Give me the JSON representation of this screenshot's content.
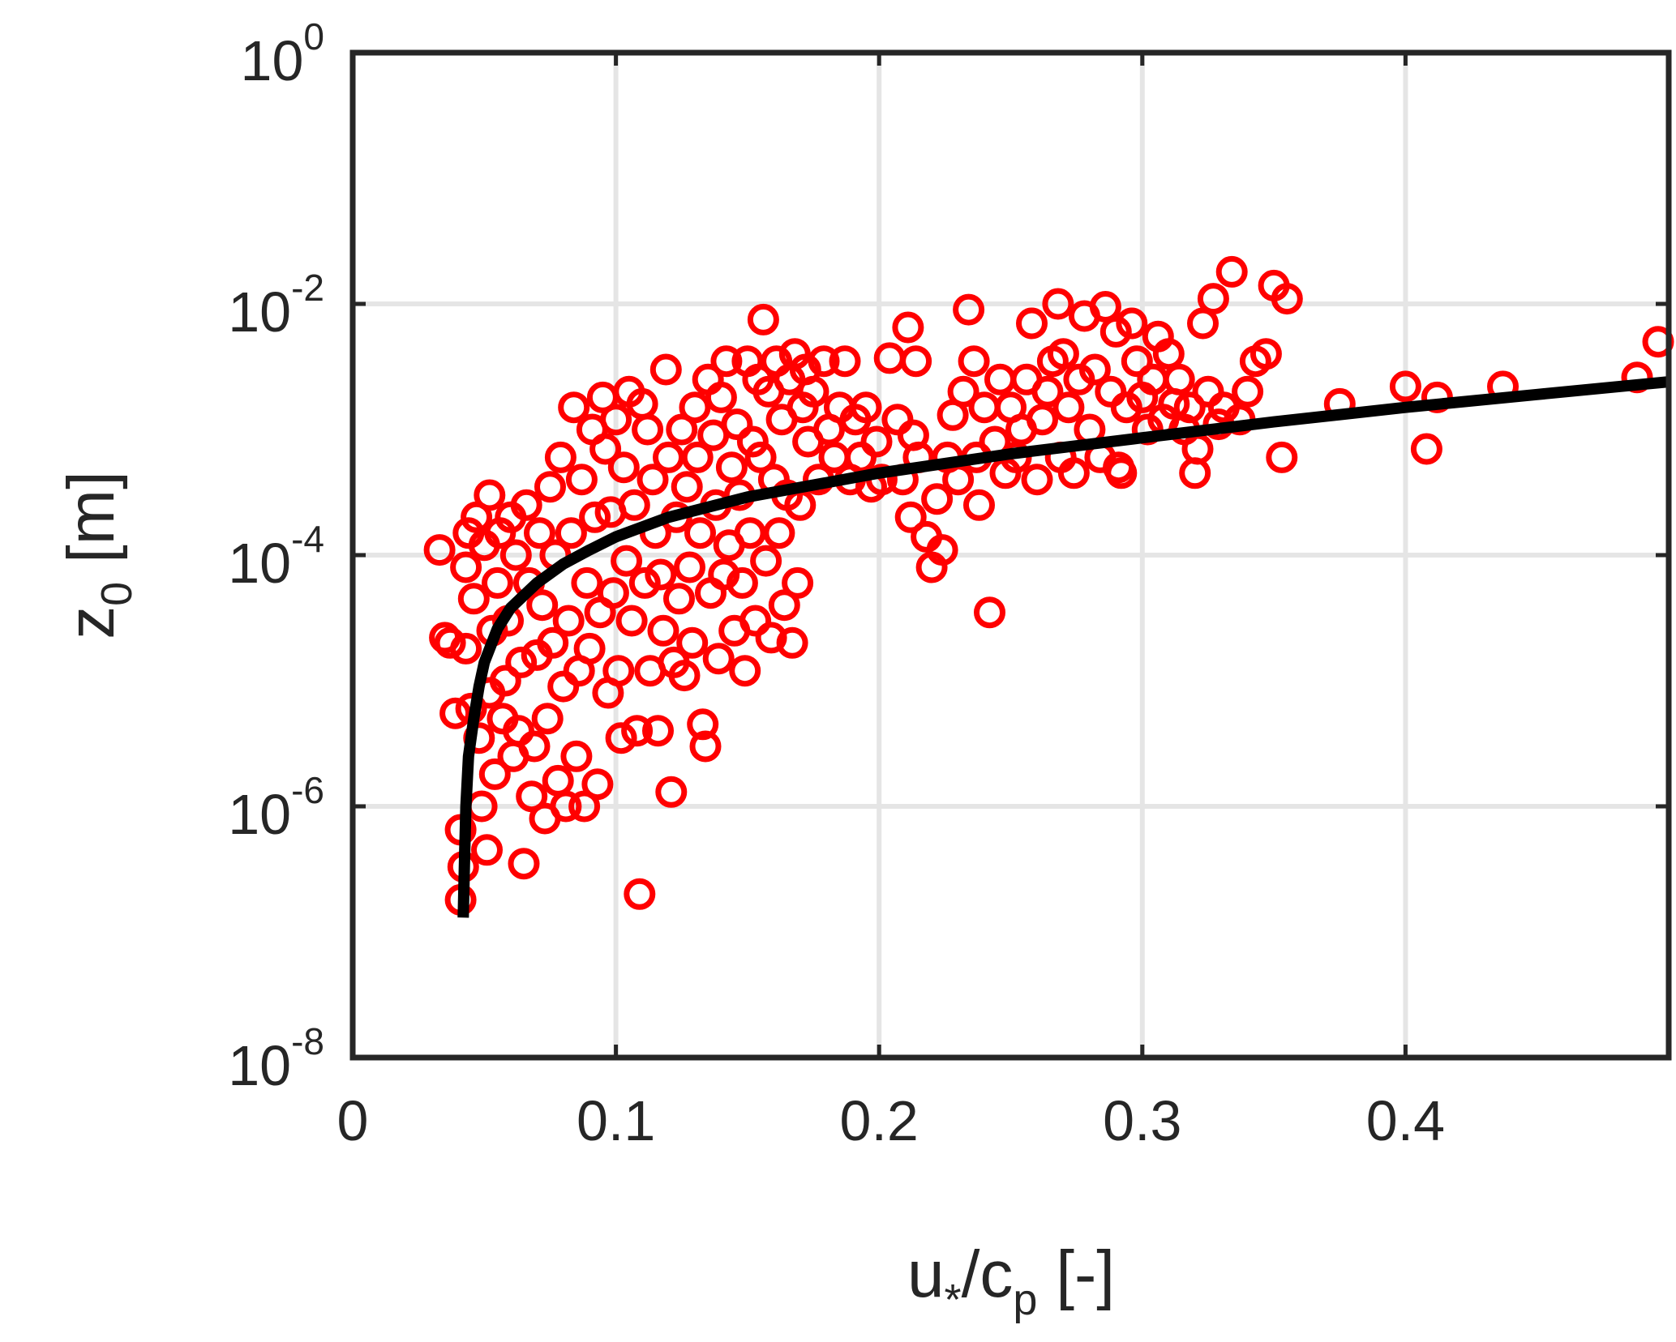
{
  "chart_data": {
    "type": "scatter",
    "title": "",
    "xlabel": {
      "base": "u",
      "sub1": "*",
      "mid": "/c",
      "sub2": "p",
      "unit": " [-]"
    },
    "ylabel": {
      "base": "z",
      "sub": "0",
      "unit": " [m]"
    },
    "xlim": [
      0,
      0.5
    ],
    "ylim": [
      1e-08,
      1
    ],
    "yscale": "log",
    "grid": true,
    "x_ticks": [
      {
        "v": 0,
        "label": "0"
      },
      {
        "v": 0.1,
        "label": "0.1"
      },
      {
        "v": 0.2,
        "label": "0.2"
      },
      {
        "v": 0.3,
        "label": "0.3"
      },
      {
        "v": 0.4,
        "label": "0.4"
      }
    ],
    "y_ticks": [
      {
        "exp": -8,
        "base": "10",
        "sup": "-8"
      },
      {
        "exp": -6,
        "base": "10",
        "sup": "-6"
      },
      {
        "exp": -4,
        "base": "10",
        "sup": "-4"
      },
      {
        "exp": -2,
        "base": "10",
        "sup": "-2"
      },
      {
        "exp": 0,
        "base": "10",
        "sup": "0"
      }
    ],
    "colors": {
      "points": "#ff0000",
      "fit": "#000000",
      "axes": "#262626",
      "grid": "#e5e5e5"
    },
    "series": [
      {
        "type": "scatter",
        "marker": "open-circle",
        "points": [
          [
            0.033,
            0.00011
          ],
          [
            0.035,
            2.2e-05
          ],
          [
            0.037,
            2e-05
          ],
          [
            0.039,
            5.5e-06
          ],
          [
            0.041,
            6.5e-07
          ],
          [
            0.041,
            1.8e-07
          ],
          [
            0.042,
            3.3e-07
          ],
          [
            0.043,
            8e-05
          ],
          [
            0.043,
            1.8e-05
          ],
          [
            0.044,
            0.00015
          ],
          [
            0.045,
            6e-06
          ],
          [
            0.046,
            4.5e-05
          ],
          [
            0.047,
            0.0002
          ],
          [
            0.048,
            3.5e-06
          ],
          [
            0.049,
            1e-06
          ],
          [
            0.05,
            0.00012
          ],
          [
            0.051,
            4.5e-07
          ],
          [
            0.052,
            8e-06
          ],
          [
            0.052,
            0.0003
          ],
          [
            0.053,
            2.5e-05
          ],
          [
            0.054,
            1.8e-06
          ],
          [
            0.055,
            6e-05
          ],
          [
            0.056,
            0.00015
          ],
          [
            0.057,
            5e-06
          ],
          [
            0.058,
            1e-05
          ],
          [
            0.059,
            3e-05
          ],
          [
            0.06,
            0.0002
          ],
          [
            0.061,
            2.5e-06
          ],
          [
            0.062,
            0.0001
          ],
          [
            0.063,
            4e-06
          ],
          [
            0.064,
            1.4e-05
          ],
          [
            0.065,
            3.5e-07
          ],
          [
            0.066,
            0.00025
          ],
          [
            0.067,
            6e-05
          ],
          [
            0.068,
            1.2e-06
          ],
          [
            0.069,
            3e-06
          ],
          [
            0.07,
            1.6e-05
          ],
          [
            0.071,
            0.00015
          ],
          [
            0.072,
            4e-05
          ],
          [
            0.073,
            8e-07
          ],
          [
            0.074,
            5e-06
          ],
          [
            0.075,
            0.00035
          ],
          [
            0.076,
            2e-05
          ],
          [
            0.077,
            0.0001
          ],
          [
            0.078,
            1.6e-06
          ],
          [
            0.079,
            0.0006
          ],
          [
            0.08,
            9e-06
          ],
          [
            0.081,
            1e-06
          ],
          [
            0.082,
            3e-05
          ],
          [
            0.083,
            0.00015
          ],
          [
            0.084,
            0.0015
          ],
          [
            0.085,
            2.5e-06
          ],
          [
            0.086,
            1.2e-05
          ],
          [
            0.087,
            0.0004
          ],
          [
            0.088,
            1e-06
          ],
          [
            0.089,
            6e-05
          ],
          [
            0.09,
            1.8e-05
          ],
          [
            0.091,
            0.001
          ],
          [
            0.092,
            0.0002
          ],
          [
            0.093,
            1.5e-06
          ],
          [
            0.094,
            3.5e-05
          ],
          [
            0.095,
            0.0018
          ],
          [
            0.096,
            0.0007
          ],
          [
            0.097,
            8e-06
          ],
          [
            0.098,
            0.00022
          ],
          [
            0.099,
            5e-05
          ],
          [
            0.1,
            0.0012
          ],
          [
            0.101,
            1.2e-05
          ],
          [
            0.102,
            3.5e-06
          ],
          [
            0.103,
            0.0005
          ],
          [
            0.104,
            9e-05
          ],
          [
            0.105,
            0.002
          ],
          [
            0.106,
            3e-05
          ],
          [
            0.107,
            0.00025
          ],
          [
            0.108,
            4e-06
          ],
          [
            0.109,
            2e-07
          ],
          [
            0.11,
            0.0016
          ],
          [
            0.111,
            6e-05
          ],
          [
            0.112,
            0.001
          ],
          [
            0.113,
            1.2e-05
          ],
          [
            0.114,
            0.0004
          ],
          [
            0.115,
            0.00015
          ],
          [
            0.116,
            4e-06
          ],
          [
            0.117,
            7e-05
          ],
          [
            0.118,
            2.5e-05
          ],
          [
            0.119,
            0.003
          ],
          [
            0.12,
            0.0006
          ],
          [
            0.121,
            1.3e-06
          ],
          [
            0.122,
            1.4e-05
          ],
          [
            0.123,
            0.0002
          ],
          [
            0.124,
            4.5e-05
          ],
          [
            0.125,
            0.001
          ],
          [
            0.126,
            1.1e-05
          ],
          [
            0.127,
            0.00035
          ],
          [
            0.128,
            8e-05
          ],
          [
            0.129,
            2e-05
          ],
          [
            0.13,
            0.0015
          ],
          [
            0.131,
            0.0006
          ],
          [
            0.132,
            0.00015
          ],
          [
            0.133,
            4.5e-06
          ],
          [
            0.134,
            3e-06
          ],
          [
            0.135,
            0.0025
          ],
          [
            0.136,
            5e-05
          ],
          [
            0.137,
            0.0009
          ],
          [
            0.138,
            0.00025
          ],
          [
            0.139,
            1.5e-05
          ],
          [
            0.14,
            0.0018
          ],
          [
            0.141,
            7e-05
          ],
          [
            0.142,
            0.0035
          ],
          [
            0.143,
            0.00012
          ],
          [
            0.144,
            0.0005
          ],
          [
            0.145,
            2.5e-05
          ],
          [
            0.146,
            0.0011
          ],
          [
            0.147,
            0.0003
          ],
          [
            0.148,
            6e-05
          ],
          [
            0.149,
            1.2e-05
          ],
          [
            0.15,
            0.0035
          ],
          [
            0.151,
            0.00015
          ],
          [
            0.152,
            0.0008
          ],
          [
            0.153,
            3e-05
          ],
          [
            0.154,
            0.0025
          ],
          [
            0.155,
            0.0006
          ],
          [
            0.156,
            0.0075
          ],
          [
            0.157,
            9e-05
          ],
          [
            0.158,
            0.002
          ],
          [
            0.159,
            2.2e-05
          ],
          [
            0.16,
            0.0004
          ],
          [
            0.161,
            0.0035
          ],
          [
            0.162,
            0.00015
          ],
          [
            0.163,
            0.0012
          ],
          [
            0.164,
            4e-05
          ],
          [
            0.165,
            0.0003
          ],
          [
            0.166,
            0.0025
          ],
          [
            0.167,
            2e-05
          ],
          [
            0.168,
            0.004
          ],
          [
            0.169,
            6e-05
          ],
          [
            0.17,
            0.00025
          ],
          [
            0.171,
            0.0015
          ],
          [
            0.172,
            0.003
          ],
          [
            0.173,
            0.0008
          ],
          [
            0.175,
            0.002
          ],
          [
            0.177,
            0.0004
          ],
          [
            0.179,
            0.0035
          ],
          [
            0.181,
            0.001
          ],
          [
            0.183,
            0.0006
          ],
          [
            0.185,
            0.0015
          ],
          [
            0.187,
            0.0035
          ],
          [
            0.189,
            0.0004
          ],
          [
            0.191,
            0.0012
          ],
          [
            0.193,
            0.0006
          ],
          [
            0.195,
            0.0015
          ],
          [
            0.197,
            0.00035
          ],
          [
            0.199,
            0.0008
          ],
          [
            0.201,
            0.0004
          ],
          [
            0.204,
            0.0037
          ],
          [
            0.207,
            0.0012
          ],
          [
            0.209,
            0.0004
          ],
          [
            0.211,
            0.0065
          ],
          [
            0.212,
            0.0002
          ],
          [
            0.213,
            0.0009
          ],
          [
            0.214,
            0.0035
          ],
          [
            0.215,
            0.0006
          ],
          [
            0.218,
            0.00014
          ],
          [
            0.22,
            8e-05
          ],
          [
            0.222,
            0.00028
          ],
          [
            0.224,
            0.00011
          ],
          [
            0.226,
            0.0006
          ],
          [
            0.228,
            0.0013
          ],
          [
            0.23,
            0.0004
          ],
          [
            0.232,
            0.002
          ],
          [
            0.234,
            0.009
          ],
          [
            0.236,
            0.0035
          ],
          [
            0.237,
            0.0006
          ],
          [
            0.238,
            0.00025
          ],
          [
            0.24,
            0.0015
          ],
          [
            0.242,
            3.5e-05
          ],
          [
            0.244,
            0.0008
          ],
          [
            0.246,
            0.0025
          ],
          [
            0.248,
            0.00045
          ],
          [
            0.25,
            0.0015
          ],
          [
            0.252,
            0.0006
          ],
          [
            0.254,
            0.001
          ],
          [
            0.256,
            0.0025
          ],
          [
            0.258,
            0.007
          ],
          [
            0.26,
            0.0004
          ],
          [
            0.262,
            0.0012
          ],
          [
            0.264,
            0.002
          ],
          [
            0.266,
            0.0035
          ],
          [
            0.268,
            0.01
          ],
          [
            0.269,
            0.0006
          ],
          [
            0.27,
            0.004
          ],
          [
            0.272,
            0.0015
          ],
          [
            0.274,
            0.00045
          ],
          [
            0.276,
            0.0025
          ],
          [
            0.278,
            0.008
          ],
          [
            0.28,
            0.001
          ],
          [
            0.282,
            0.003
          ],
          [
            0.284,
            0.0006
          ],
          [
            0.286,
            0.0095
          ],
          [
            0.288,
            0.002
          ],
          [
            0.29,
            0.006
          ],
          [
            0.291,
            0.0005
          ],
          [
            0.292,
            0.00045
          ],
          [
            0.294,
            0.0015
          ],
          [
            0.296,
            0.007
          ],
          [
            0.298,
            0.0035
          ],
          [
            0.3,
            0.0018
          ],
          [
            0.302,
            0.001
          ],
          [
            0.304,
            0.0025
          ],
          [
            0.306,
            0.0055
          ],
          [
            0.308,
            0.0012
          ],
          [
            0.31,
            0.004
          ],
          [
            0.312,
            0.0016
          ],
          [
            0.314,
            0.0025
          ],
          [
            0.316,
            0.001
          ],
          [
            0.318,
            0.0015
          ],
          [
            0.32,
            0.00045
          ],
          [
            0.321,
            0.0007
          ],
          [
            0.323,
            0.007
          ],
          [
            0.325,
            0.002
          ],
          [
            0.327,
            0.011
          ],
          [
            0.329,
            0.0011
          ],
          [
            0.331,
            0.0015
          ],
          [
            0.334,
            0.018
          ],
          [
            0.337,
            0.0012
          ],
          [
            0.34,
            0.002
          ],
          [
            0.343,
            0.0035
          ],
          [
            0.347,
            0.004
          ],
          [
            0.35,
            0.014
          ],
          [
            0.353,
            0.0006
          ],
          [
            0.355,
            0.011
          ],
          [
            0.375,
            0.0016
          ],
          [
            0.4,
            0.0022
          ],
          [
            0.408,
            0.0007
          ],
          [
            0.412,
            0.0018
          ],
          [
            0.437,
            0.0022
          ],
          [
            0.488,
            0.0026
          ],
          [
            0.496,
            0.005
          ]
        ]
      },
      {
        "type": "line",
        "x_start": 0.042,
        "x_end": 0.5,
        "points": [
          [
            0.042,
            1.3e-07
          ],
          [
            0.0425,
            4e-07
          ],
          [
            0.043,
            1e-06
          ],
          [
            0.044,
            2.5e-06
          ],
          [
            0.046,
            5e-06
          ],
          [
            0.048,
            9e-06
          ],
          [
            0.05,
            1.4e-05
          ],
          [
            0.055,
            2.6e-05
          ],
          [
            0.06,
            3.8e-05
          ],
          [
            0.07,
            6e-05
          ],
          [
            0.08,
            8.5e-05
          ],
          [
            0.09,
            0.00011
          ],
          [
            0.1,
            0.00014
          ],
          [
            0.12,
            0.0002
          ],
          [
            0.15,
            0.00029
          ],
          [
            0.2,
            0.00045
          ],
          [
            0.25,
            0.00064
          ],
          [
            0.3,
            0.00086
          ],
          [
            0.35,
            0.00115
          ],
          [
            0.4,
            0.0015
          ],
          [
            0.45,
            0.0019
          ],
          [
            0.5,
            0.0024
          ]
        ]
      }
    ]
  }
}
